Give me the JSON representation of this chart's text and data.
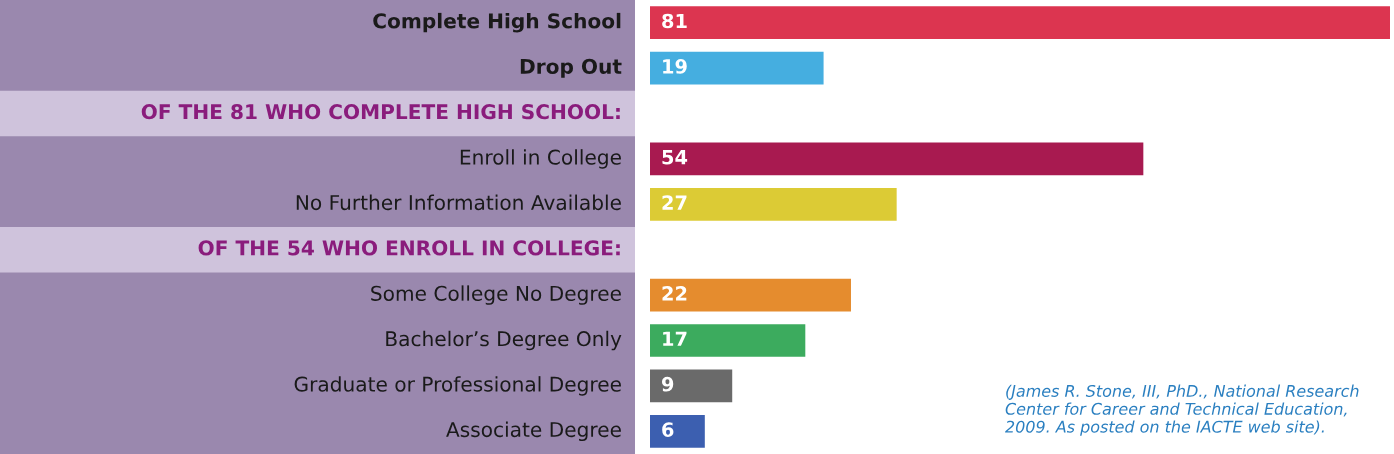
{
  "chart_data": {
    "type": "bar",
    "orientation": "horizontal",
    "categories": [
      "Complete High School",
      "Drop Out",
      null,
      "Enroll in College",
      "No Further Information Available",
      null,
      "Some College No Degree",
      "Bachelor’s Degree Only",
      "Graduate or Professional Degree",
      "Associate Degree"
    ],
    "values": [
      81,
      19,
      null,
      54,
      27,
      null,
      22,
      17,
      9,
      6
    ],
    "colors": [
      "#dc3550",
      "#45aee0",
      null,
      "#a81a50",
      "#dccb35",
      null,
      "#e58c2e",
      "#3cab5e",
      "#6a6a6a",
      "#3c5fb0"
    ],
    "data_labels": true,
    "annotations": [
      "OF THE 81 WHO COMPLETE HIGH SCHOOL:",
      "OF THE 54 WHO ENROLL IN COLLEGE:",
      "(James R. Stone, III, PhD., National Research Center for Career and Technical Education, 2009. As posted on the IACTE web site)."
    ]
  }
}
